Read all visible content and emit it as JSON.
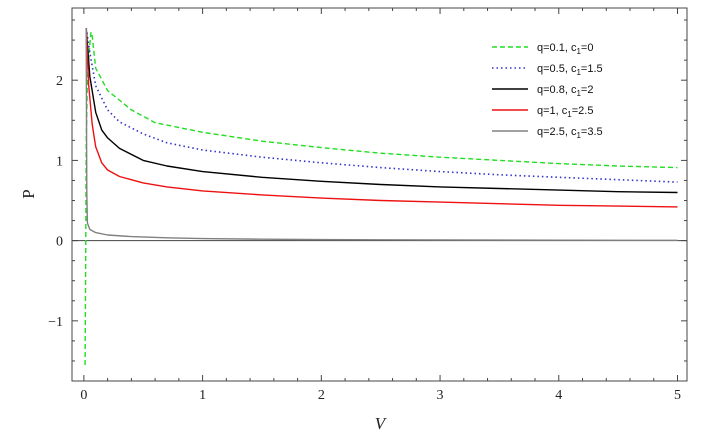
{
  "chart_data": {
    "type": "line",
    "xlabel": "V",
    "ylabel": "P",
    "xlim": [
      -0.1,
      5.08
    ],
    "ylim": [
      -1.75,
      2.9
    ],
    "x_ticks": [
      0,
      1,
      2,
      3,
      4,
      5
    ],
    "y_ticks": [
      -1,
      0,
      1,
      2
    ],
    "x_tick_labels": [
      "0",
      "1",
      "2",
      "3",
      "4",
      "5"
    ],
    "y_tick_labels": [
      "−1",
      "0",
      "1",
      "2"
    ],
    "legend_position": "top-right",
    "grid": false,
    "series": [
      {
        "name": "q=0.1, c1=0",
        "legend": {
          "pre": "q=0.1, c",
          "sub": "1",
          "post": "=0"
        },
        "color": "#22dd22",
        "style": "dashed",
        "points": [
          [
            0.01,
            -1.55
          ],
          [
            0.015,
            -0.2
          ],
          [
            0.02,
            1.2
          ],
          [
            0.03,
            2.0
          ],
          [
            0.05,
            2.45
          ],
          [
            0.06,
            2.6
          ],
          [
            0.07,
            2.55
          ],
          [
            0.1,
            2.15
          ],
          [
            0.2,
            1.87
          ],
          [
            0.4,
            1.63
          ],
          [
            0.6,
            1.47
          ],
          [
            1.0,
            1.35
          ],
          [
            1.5,
            1.24
          ],
          [
            2.0,
            1.16
          ],
          [
            2.5,
            1.09
          ],
          [
            3.0,
            1.04
          ],
          [
            3.5,
            1.0
          ],
          [
            4.0,
            0.96
          ],
          [
            4.5,
            0.93
          ],
          [
            5.0,
            0.91
          ]
        ]
      },
      {
        "name": "q=0.5, c1=1.5",
        "legend": {
          "pre": "q=0.5, c",
          "sub": "1",
          "post": "=1.5"
        },
        "color": "#3333cc",
        "style": "dotted",
        "points": [
          [
            0.02,
            2.65
          ],
          [
            0.05,
            2.35
          ],
          [
            0.1,
            1.93
          ],
          [
            0.2,
            1.63
          ],
          [
            0.3,
            1.48
          ],
          [
            0.5,
            1.33
          ],
          [
            0.7,
            1.22
          ],
          [
            1.0,
            1.13
          ],
          [
            1.5,
            1.04
          ],
          [
            2.0,
            0.97
          ],
          [
            2.5,
            0.91
          ],
          [
            3.0,
            0.86
          ],
          [
            3.5,
            0.82
          ],
          [
            4.0,
            0.79
          ],
          [
            4.5,
            0.76
          ],
          [
            5.0,
            0.73
          ]
        ]
      },
      {
        "name": "q=0.8, c1=2",
        "legend": {
          "pre": "q=0.8, c",
          "sub": "1",
          "post": "=2"
        },
        "color": "#000000",
        "style": "solid",
        "points": [
          [
            0.02,
            2.65
          ],
          [
            0.05,
            2.05
          ],
          [
            0.1,
            1.6
          ],
          [
            0.15,
            1.38
          ],
          [
            0.2,
            1.28
          ],
          [
            0.3,
            1.15
          ],
          [
            0.5,
            1.0
          ],
          [
            0.7,
            0.93
          ],
          [
            1.0,
            0.86
          ],
          [
            1.5,
            0.79
          ],
          [
            2.0,
            0.74
          ],
          [
            2.5,
            0.7
          ],
          [
            3.0,
            0.67
          ],
          [
            3.5,
            0.65
          ],
          [
            4.0,
            0.63
          ],
          [
            4.5,
            0.61
          ],
          [
            5.0,
            0.6
          ]
        ]
      },
      {
        "name": "q=1, c1=2.5",
        "legend": {
          "pre": "q=1, c",
          "sub": "1",
          "post": "=2.5"
        },
        "color": "#ee1111",
        "style": "solid",
        "points": [
          [
            0.02,
            2.65
          ],
          [
            0.04,
            1.95
          ],
          [
            0.07,
            1.45
          ],
          [
            0.1,
            1.17
          ],
          [
            0.15,
            0.97
          ],
          [
            0.2,
            0.88
          ],
          [
            0.3,
            0.8
          ],
          [
            0.5,
            0.72
          ],
          [
            0.7,
            0.67
          ],
          [
            1.0,
            0.62
          ],
          [
            1.5,
            0.57
          ],
          [
            2.0,
            0.53
          ],
          [
            2.5,
            0.5
          ],
          [
            3.0,
            0.48
          ],
          [
            3.5,
            0.46
          ],
          [
            4.0,
            0.44
          ],
          [
            4.5,
            0.43
          ],
          [
            5.0,
            0.42
          ]
        ]
      },
      {
        "name": "q=2.5, c1=3.5",
        "legend": {
          "pre": "q=2.5, c",
          "sub": "1",
          "post": "=3.5"
        },
        "color": "#808080",
        "style": "solid",
        "points": [
          [
            0.02,
            2.65
          ],
          [
            0.022,
            1.5
          ],
          [
            0.025,
            0.6
          ],
          [
            0.03,
            0.22
          ],
          [
            0.05,
            0.14
          ],
          [
            0.1,
            0.1
          ],
          [
            0.2,
            0.07
          ],
          [
            0.4,
            0.05
          ],
          [
            0.7,
            0.035
          ],
          [
            1.0,
            0.025
          ],
          [
            1.5,
            0.018
          ],
          [
            2.0,
            0.013
          ],
          [
            3.0,
            0.008
          ],
          [
            4.0,
            0.005
          ],
          [
            5.0,
            0.004
          ]
        ]
      }
    ]
  }
}
